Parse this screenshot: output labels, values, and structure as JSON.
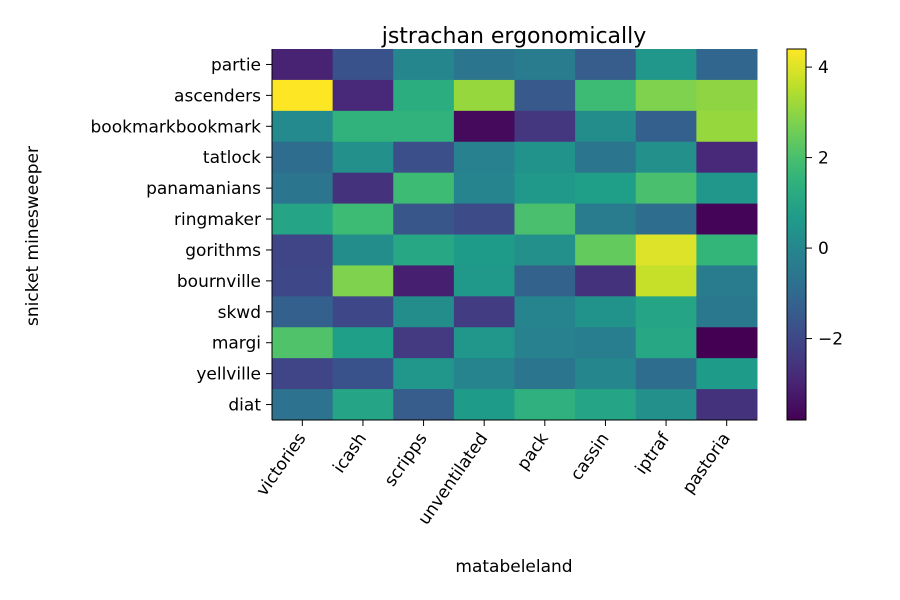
{
  "chart_data": {
    "type": "heatmap",
    "title": "jstrachan ergonomically",
    "xlabel": "matabeleland",
    "ylabel": "snicket minesweeper",
    "x_categories": [
      "victories",
      "icash",
      "scripps",
      "unventilated",
      "pack",
      "cassin",
      "iptraf",
      "pastoria"
    ],
    "y_categories": [
      "partie",
      "ascenders",
      "bookmarkbookmark",
      "tatlock",
      "panamanians",
      "ringmaker",
      "gorithms",
      "bournville",
      "skwd",
      "margi",
      "yellville",
      "diat"
    ],
    "values": [
      [
        -3.0,
        -1.7,
        0.0,
        -0.6,
        -0.4,
        -1.4,
        0.5,
        -1.1
      ],
      [
        4.4,
        -2.9,
        1.3,
        3.1,
        -1.5,
        1.8,
        2.8,
        3.0
      ],
      [
        0.1,
        1.5,
        1.5,
        -3.6,
        -2.5,
        0.2,
        -1.3,
        3.1
      ],
      [
        -0.9,
        0.3,
        -1.8,
        -0.2,
        0.4,
        -0.6,
        0.3,
        -2.9
      ],
      [
        -0.6,
        -2.6,
        1.8,
        -0.1,
        0.6,
        0.8,
        2.0,
        0.5
      ],
      [
        1.0,
        1.8,
        -1.6,
        -1.9,
        2.0,
        -0.4,
        -0.9,
        -3.7
      ],
      [
        -2.1,
        0.2,
        1.1,
        0.7,
        0.3,
        2.4,
        4.0,
        1.6
      ],
      [
        -2.0,
        2.8,
        -3.1,
        0.6,
        -1.2,
        -2.6,
        3.7,
        -0.4
      ],
      [
        -1.3,
        -2.0,
        0.2,
        -2.3,
        -0.1,
        0.4,
        1.0,
        -0.5
      ],
      [
        2.1,
        0.8,
        -2.4,
        0.5,
        -0.2,
        -0.3,
        1.1,
        -3.8
      ],
      [
        -2.1,
        -1.7,
        0.5,
        -0.1,
        -0.6,
        0.0,
        -0.9,
        0.7
      ],
      [
        -0.7,
        1.0,
        -1.4,
        0.7,
        1.4,
        1.0,
        0.3,
        -2.6
      ]
    ],
    "colormap": "viridis",
    "vmin": -3.8,
    "vmax": 4.4,
    "colorbar_ticks": [
      -2,
      0,
      2,
      4
    ],
    "colorbar_tick_labels": [
      "−2",
      "0",
      "2",
      "4"
    ]
  }
}
